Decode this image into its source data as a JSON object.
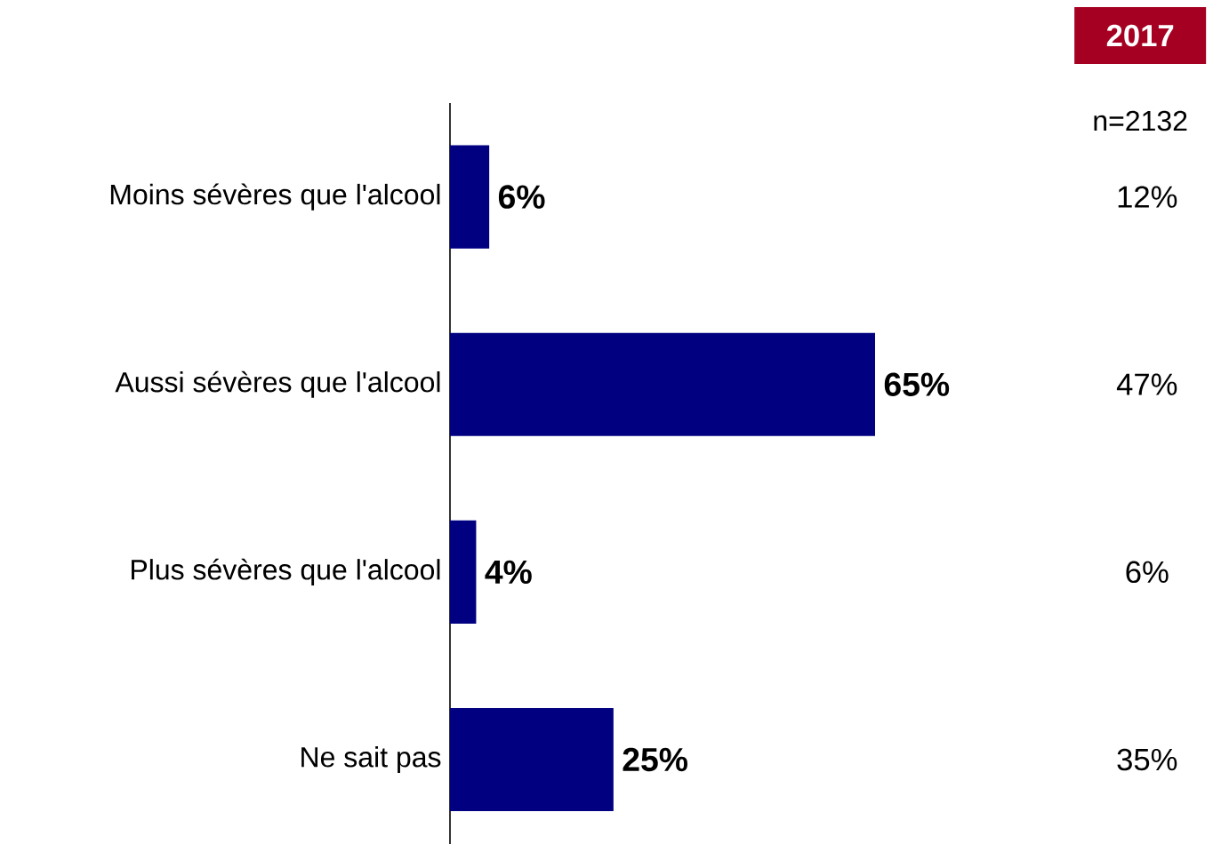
{
  "chart_data": {
    "type": "bar",
    "orientation": "horizontal",
    "categories": [
      "Moins sévères que l'alcool",
      "Aussi sévères que l'alcool",
      "Plus sévères que l'alcool",
      "Ne sait pas"
    ],
    "values": [
      6,
      65,
      4,
      25
    ],
    "color": "#000080",
    "value_labels": [
      "6%",
      "65%",
      "4%",
      "25%"
    ],
    "tick_labels": "y",
    "grid": false,
    "annotations": [
      "2017",
      "n=2132",
      "12%",
      "47%",
      "6%",
      "35%"
    ]
  }
}
